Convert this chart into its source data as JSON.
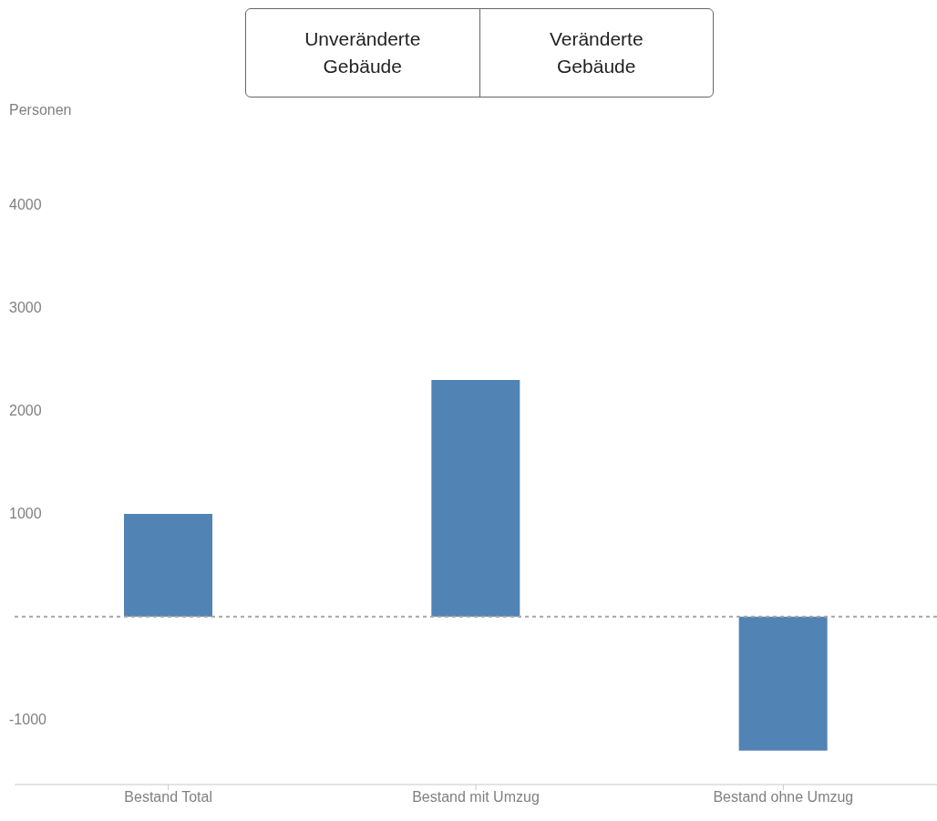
{
  "chart_data": {
    "type": "bar",
    "annotations": [
      "Personen",
      "Unveränderte Gebäude",
      "Veränderte Gebäude"
    ],
    "categories": [
      "Bestand Total",
      "Bestand mit Umzug",
      "Bestand ohne Umzug"
    ],
    "values": [
      1000,
      2300,
      -1300
    ],
    "color": "#5183b4",
    "ylim": [
      -1630,
      4000
    ],
    "yticks": [
      -1000,
      1000,
      2000,
      3000,
      4000
    ],
    "ref_lines": [
      {
        "axis": "y",
        "value": 0,
        "color": "#a6a6a6",
        "line_style": "dashed"
      }
    ],
    "grid": false
  }
}
